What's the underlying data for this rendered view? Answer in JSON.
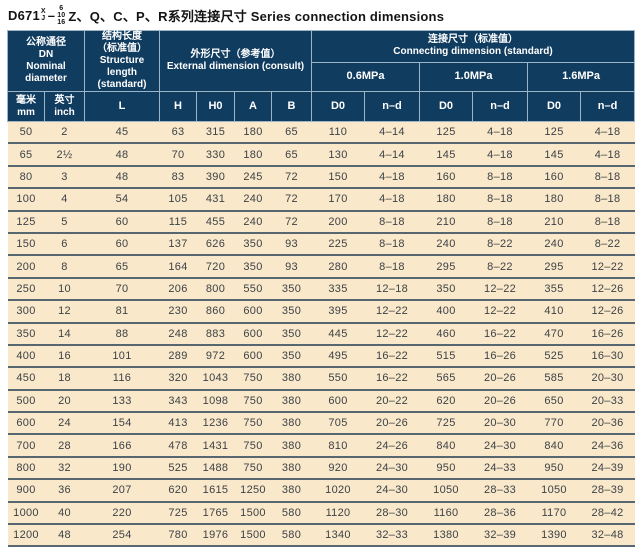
{
  "title": {
    "model": "D671",
    "sup": "X",
    "sub": "J",
    "dash": "–",
    "pressure_stack": [
      "6",
      "10",
      "16"
    ],
    "series": "Z、Q、C、P、R系列连接尺寸 Series connection dimensions"
  },
  "colors": {
    "header_bg": "#103c60",
    "header_border": "#9db4c5",
    "row_bg": "#f9e8ca",
    "row_separator": "#57676f",
    "data_text": "#3d4247"
  },
  "header": {
    "dn": {
      "zh": "公称通径",
      "code": "DN",
      "en1": "Nominal",
      "en2": "diameter"
    },
    "structure": {
      "zh": "结构长度",
      "zh_note": "（标准值）",
      "en": "Structure length",
      "en_note": "(standard)"
    },
    "external": {
      "zh": "外形尺寸（参考值）",
      "en": "External dimension (consult)"
    },
    "connecting": {
      "zh": "连接尺寸（标准值）",
      "en": "Connecting dimension (standard)"
    },
    "pressures": [
      "0.6MPa",
      "1.0MPa",
      "1.6MPa"
    ],
    "subcols": {
      "mm_zh": "毫米",
      "mm_en": "mm",
      "inch_zh": "英寸",
      "inch_en": "inch",
      "L": "L",
      "H": "H",
      "H0": "H0",
      "A": "A",
      "B": "B",
      "D0": "D0",
      "nd": "n–d"
    }
  },
  "table": {
    "columns": [
      "毫米 mm",
      "英寸 inch",
      "L",
      "H",
      "H0",
      "A",
      "B",
      "0.6MPa D0",
      "0.6MPa n–d",
      "1.0MPa D0",
      "1.0MPa n–d",
      "1.6MPa D0",
      "1.6MPa n–d"
    ],
    "rows": [
      [
        "50",
        "2",
        "45",
        "63",
        "315",
        "180",
        "65",
        "110",
        "4–14",
        "125",
        "4–18",
        "125",
        "4–18"
      ],
      [
        "65",
        "2½",
        "48",
        "70",
        "330",
        "180",
        "65",
        "130",
        "4–14",
        "145",
        "4–18",
        "145",
        "4–18"
      ],
      [
        "80",
        "3",
        "48",
        "83",
        "390",
        "245",
        "72",
        "150",
        "4–18",
        "160",
        "8–18",
        "160",
        "8–18"
      ],
      [
        "100",
        "4",
        "54",
        "105",
        "431",
        "240",
        "72",
        "170",
        "4–18",
        "180",
        "8–18",
        "180",
        "8–18"
      ],
      [
        "125",
        "5",
        "60",
        "115",
        "455",
        "240",
        "72",
        "200",
        "8–18",
        "210",
        "8–18",
        "210",
        "8–18"
      ],
      [
        "150",
        "6",
        "60",
        "137",
        "626",
        "350",
        "93",
        "225",
        "8–18",
        "240",
        "8–22",
        "240",
        "8–22"
      ],
      [
        "200",
        "8",
        "65",
        "164",
        "720",
        "350",
        "93",
        "280",
        "8–18",
        "295",
        "8–22",
        "295",
        "12–22"
      ],
      [
        "250",
        "10",
        "70",
        "206",
        "800",
        "550",
        "350",
        "335",
        "12–18",
        "350",
        "12–22",
        "355",
        "12–26"
      ],
      [
        "300",
        "12",
        "81",
        "230",
        "860",
        "600",
        "350",
        "395",
        "12–22",
        "400",
        "12–22",
        "410",
        "12–26"
      ],
      [
        "350",
        "14",
        "88",
        "248",
        "883",
        "600",
        "350",
        "445",
        "12–22",
        "460",
        "16–22",
        "470",
        "16–26"
      ],
      [
        "400",
        "16",
        "101",
        "289",
        "972",
        "600",
        "350",
        "495",
        "16–22",
        "515",
        "16–26",
        "525",
        "16–30"
      ],
      [
        "450",
        "18",
        "116",
        "320",
        "1043",
        "750",
        "380",
        "550",
        "16–22",
        "565",
        "20–26",
        "585",
        "20–30"
      ],
      [
        "500",
        "20",
        "133",
        "343",
        "1098",
        "750",
        "380",
        "600",
        "20–22",
        "620",
        "20–26",
        "650",
        "20–33"
      ],
      [
        "600",
        "24",
        "154",
        "413",
        "1236",
        "750",
        "380",
        "705",
        "20–26",
        "725",
        "20–30",
        "770",
        "20–36"
      ],
      [
        "700",
        "28",
        "166",
        "478",
        "1431",
        "750",
        "380",
        "810",
        "24–26",
        "840",
        "24–30",
        "840",
        "24–36"
      ],
      [
        "800",
        "32",
        "190",
        "525",
        "1488",
        "750",
        "380",
        "920",
        "24–30",
        "950",
        "24–33",
        "950",
        "24–39"
      ],
      [
        "900",
        "36",
        "207",
        "620",
        "1615",
        "1250",
        "380",
        "1020",
        "24–30",
        "1050",
        "28–33",
        "1050",
        "28–39"
      ],
      [
        "1000",
        "40",
        "220",
        "725",
        "1765",
        "1500",
        "580",
        "1120",
        "28–30",
        "1160",
        "28–36",
        "1170",
        "28–42"
      ],
      [
        "1200",
        "48",
        "254",
        "780",
        "1976",
        "1500",
        "580",
        "1340",
        "32–33",
        "1380",
        "32–39",
        "1390",
        "32–48"
      ]
    ]
  }
}
